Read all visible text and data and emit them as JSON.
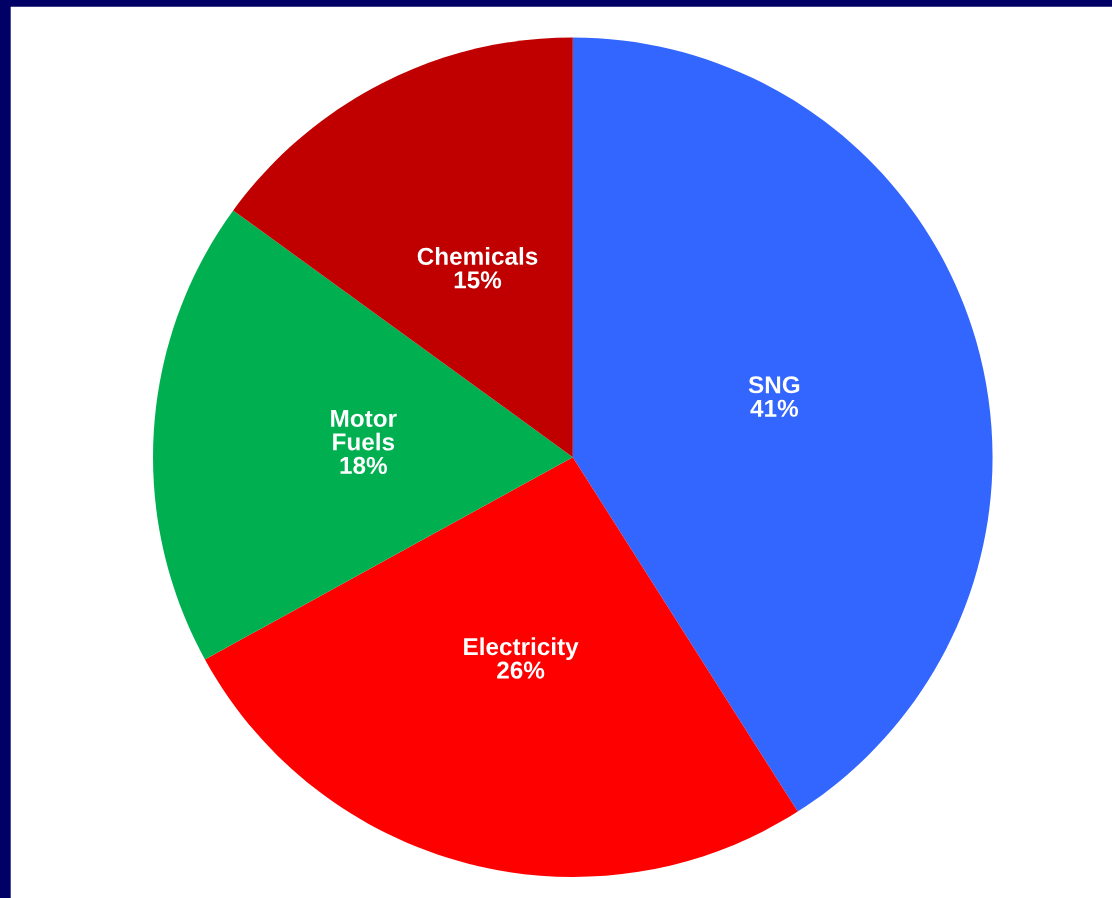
{
  "chart_data": {
    "type": "pie",
    "categories": [
      "SNG",
      "Electricity",
      "Motor\nFuels",
      "Chemicals"
    ],
    "values": [
      41,
      26,
      18,
      15
    ],
    "colors": [
      "#3366ff",
      "#ff0000",
      "#00b050",
      "#c00000"
    ],
    "value_labels": [
      "41%",
      "26%",
      "18%",
      "15%"
    ]
  }
}
